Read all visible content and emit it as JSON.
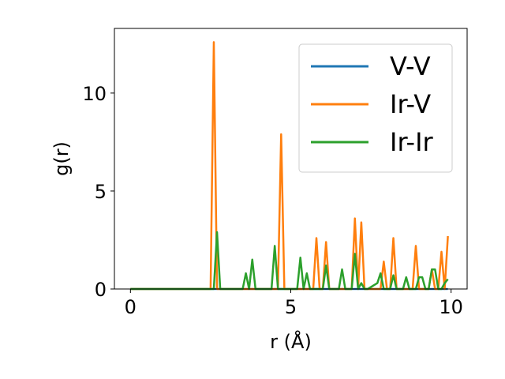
{
  "chart_data": {
    "type": "line",
    "xlabel": "r (Å)",
    "ylabel": "g(r)",
    "xlim": [
      -0.5,
      10.5
    ],
    "ylim": [
      0,
      13.3
    ],
    "xticks": [
      0,
      5,
      10
    ],
    "yticks": [
      0,
      5,
      10
    ],
    "grid": false,
    "legend_position": "top-right",
    "series": [
      {
        "name": "V-V",
        "color": "#1f77b4",
        "x": [
          0,
          2.5,
          5,
          7.5,
          9.9
        ],
        "y": [
          0,
          0,
          0,
          0,
          0
        ]
      },
      {
        "name": "Ir-V",
        "color": "#ff7f0e",
        "x": [
          0,
          2.5,
          2.6,
          2.7,
          4.6,
          4.7,
          4.8,
          5.7,
          5.8,
          5.9,
          6.0,
          6.1,
          6.2,
          6.9,
          7.0,
          7.1,
          7.2,
          7.3,
          7.8,
          7.9,
          8.0,
          8.1,
          8.2,
          8.3,
          8.8,
          8.9,
          9.0,
          9.3,
          9.4,
          9.5,
          9.6,
          9.7,
          9.8,
          9.9
        ],
        "y": [
          0,
          0,
          12.6,
          0,
          0,
          7.9,
          0,
          0,
          2.6,
          0,
          0,
          2.4,
          0,
          0,
          3.6,
          0,
          3.4,
          0,
          0,
          1.4,
          0,
          0,
          2.6,
          0,
          0,
          2.2,
          0,
          0,
          1.0,
          0,
          0,
          1.9,
          0,
          2.7
        ]
      },
      {
        "name": "Ir-Ir",
        "color": "#2ca02c",
        "x": [
          0,
          2.6,
          2.7,
          2.8,
          3.5,
          3.6,
          3.7,
          3.8,
          3.9,
          4.4,
          4.5,
          4.6,
          5.2,
          5.3,
          5.4,
          5.5,
          5.6,
          6.0,
          6.1,
          6.2,
          6.5,
          6.6,
          6.7,
          6.9,
          7.0,
          7.1,
          7.2,
          7.3,
          7.4,
          7.7,
          7.8,
          7.9,
          8.1,
          8.2,
          8.3,
          8.5,
          8.6,
          8.7,
          8.9,
          9.0,
          9.1,
          9.2,
          9.3,
          9.4,
          9.5,
          9.6,
          9.7,
          9.8,
          9.9
        ],
        "y": [
          0,
          0,
          2.9,
          0,
          0,
          0.8,
          0,
          1.5,
          0,
          0,
          2.2,
          0,
          0,
          1.6,
          0,
          0.8,
          0,
          0,
          1.2,
          0,
          0,
          1.0,
          0,
          0,
          1.8,
          0,
          0.3,
          0,
          0,
          0.3,
          0.8,
          0,
          0,
          0.7,
          0,
          0,
          0.6,
          0,
          0,
          0.6,
          0.6,
          0,
          0,
          1.0,
          1.0,
          0,
          0,
          0.3,
          0.5
        ]
      }
    ]
  }
}
